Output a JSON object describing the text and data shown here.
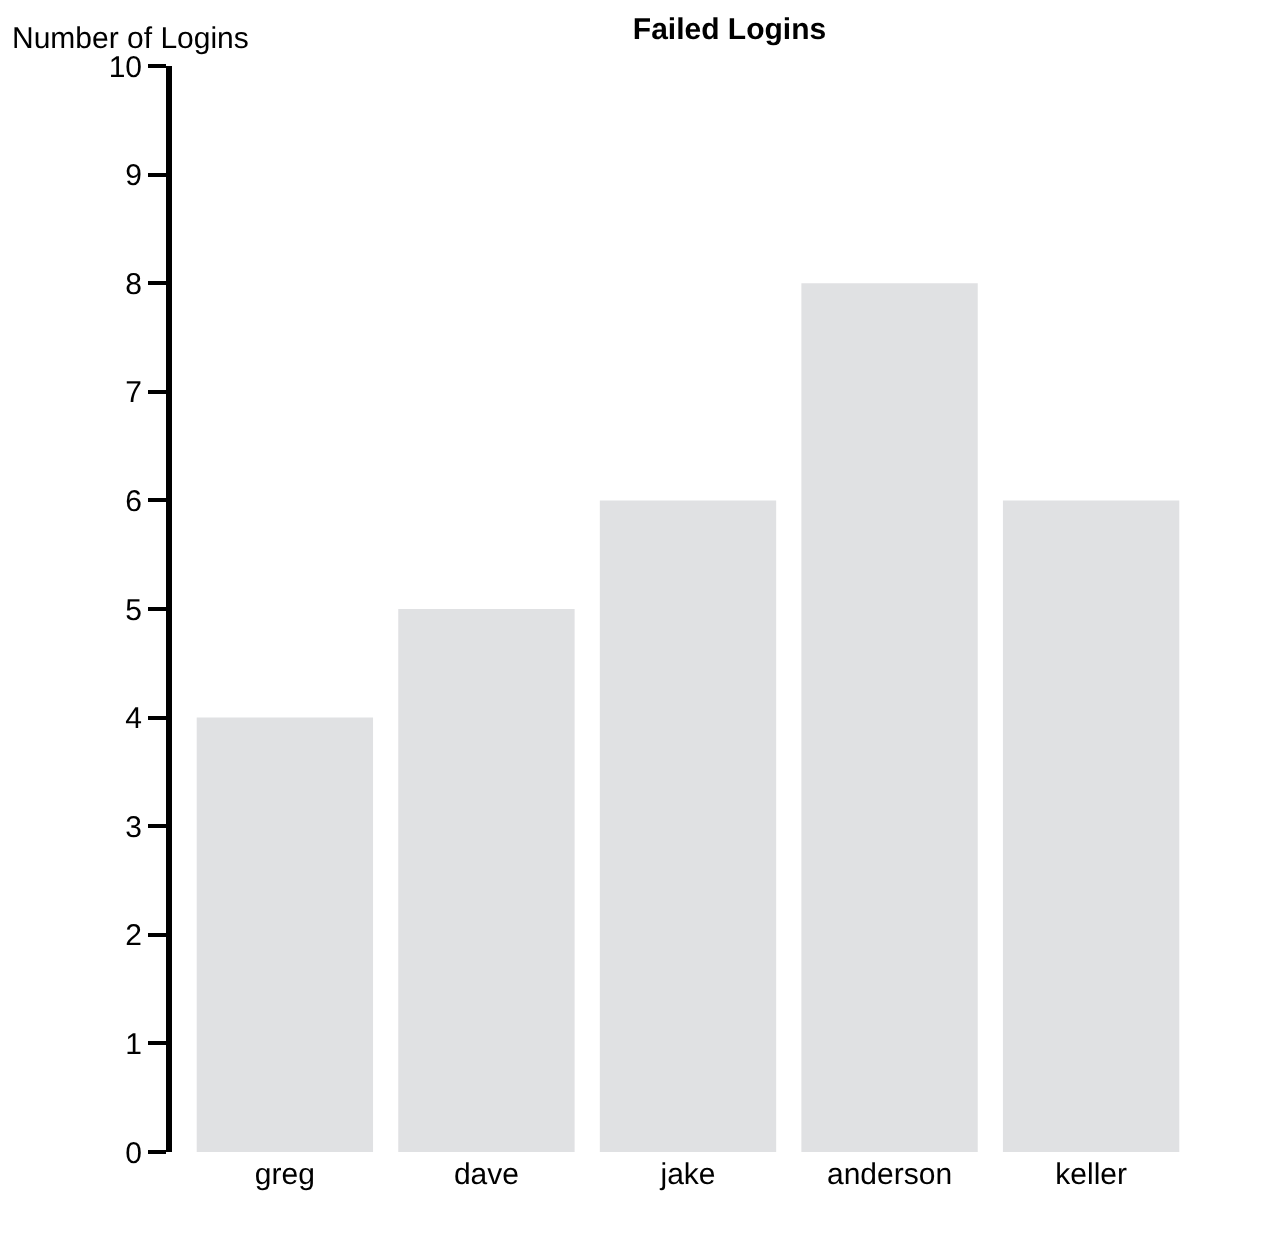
{
  "chart_data": {
    "type": "bar",
    "title": "Failed Logins",
    "ylabel": "Number of Logins",
    "categories": [
      "greg",
      "dave",
      "jake",
      "anderson",
      "keller"
    ],
    "values": [
      4,
      5,
      6,
      8,
      6
    ],
    "color": "#e0e1e3",
    "ylim": [
      0,
      10
    ],
    "yticks": [
      0,
      1,
      2,
      3,
      4,
      5,
      6,
      7,
      8,
      9,
      10
    ]
  }
}
